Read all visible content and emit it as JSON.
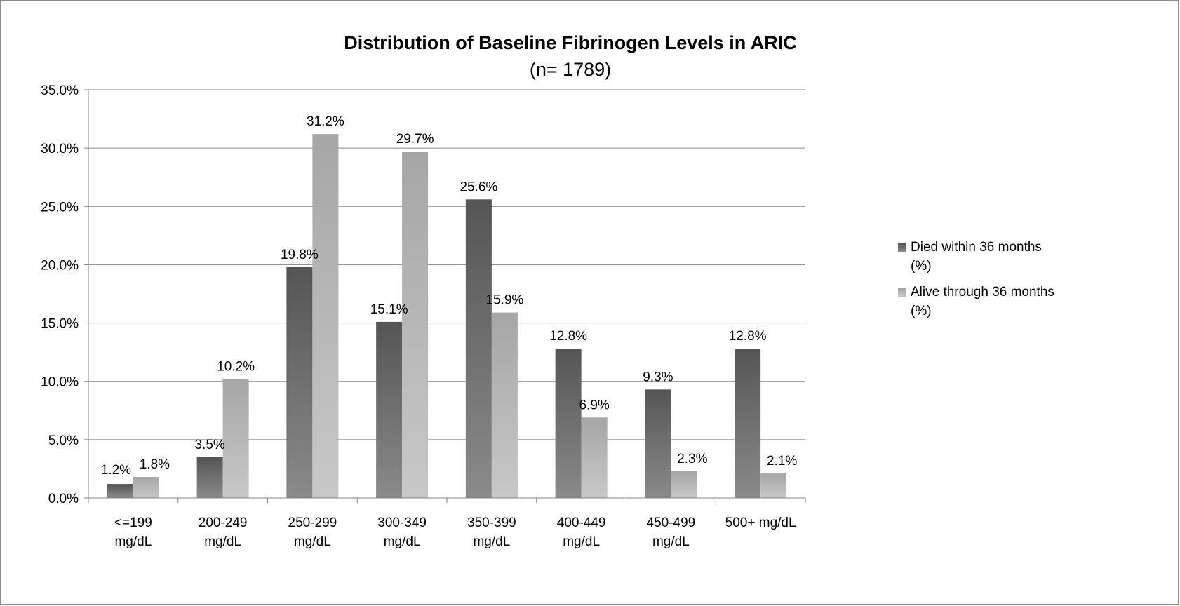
{
  "chart_data": {
    "type": "bar",
    "title": "Distribution of Baseline Fibrinogen Levels in ARIC",
    "subtitle": "(n= 1789)",
    "categories": [
      [
        "<=199",
        "mg/dL"
      ],
      [
        "200-249",
        "mg/dL"
      ],
      [
        "250-299",
        "mg/dL"
      ],
      [
        "300-349",
        "mg/dL"
      ],
      [
        "350-399",
        "mg/dL"
      ],
      [
        "400-449",
        "mg/dL"
      ],
      [
        "450-499",
        "mg/dL"
      ],
      [
        "500+ mg/dL"
      ]
    ],
    "series": [
      {
        "name": [
          "Died within 36 months",
          "(%)"
        ],
        "values": [
          1.2,
          3.5,
          19.8,
          15.1,
          25.6,
          12.8,
          9.3,
          12.8
        ],
        "labels": [
          "1.2%",
          "3.5%",
          "19.8%",
          "15.1%",
          "25.6%",
          "12.8%",
          "9.3%",
          "12.8%"
        ],
        "color_top": "#555555",
        "color_bottom": "#8a8a8a"
      },
      {
        "name": [
          "Alive through 36 months",
          "(%)"
        ],
        "values": [
          1.8,
          10.2,
          31.2,
          29.7,
          15.9,
          6.9,
          2.3,
          2.1
        ],
        "labels": [
          "1.8%",
          "10.2%",
          "31.2%",
          "29.7%",
          "15.9%",
          "6.9%",
          "2.3%",
          "2.1%"
        ],
        "color_top": "#a6a6a6",
        "color_bottom": "#c8c8c8"
      }
    ],
    "ylim": [
      0,
      35
    ],
    "yticks": [
      0,
      5,
      10,
      15,
      20,
      25,
      30,
      35
    ],
    "ytick_labels": [
      "0.0%",
      "5.0%",
      "10.0%",
      "15.0%",
      "20.0%",
      "25.0%",
      "30.0%",
      "35.0%"
    ],
    "grid": true,
    "legend_position": "right"
  }
}
